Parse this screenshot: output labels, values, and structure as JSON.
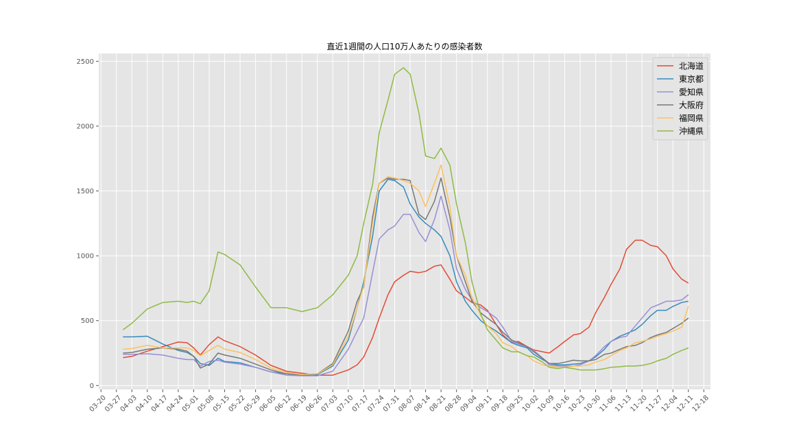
{
  "chart_data": {
    "type": "line",
    "title": "直近1週間の人口10万人あたりの感染者数",
    "xlabel": "",
    "ylabel": "",
    "ylim": [
      -30,
      2560
    ],
    "yticks": [
      0,
      500,
      1000,
      1500,
      2000,
      2500
    ],
    "x_tick_labels": [
      "03-20",
      "03-27",
      "04-03",
      "04-10",
      "04-17",
      "04-24",
      "05-01",
      "05-08",
      "05-15",
      "05-22",
      "05-29",
      "06-05",
      "06-12",
      "06-19",
      "06-26",
      "07-03",
      "07-10",
      "07-17",
      "07-24",
      "07-31",
      "08-07",
      "08-14",
      "08-21",
      "08-28",
      "09-04",
      "09-11",
      "09-18",
      "09-25",
      "10-02",
      "10-09",
      "10-16",
      "10-23",
      "10-30",
      "11-06",
      "11-13",
      "11-20",
      "11-27",
      "12-04",
      "12-11",
      "12-18"
    ],
    "grid": true,
    "legend_position": "top-right",
    "x_points": [
      "03-30",
      "04-03",
      "04-10",
      "04-17",
      "04-24",
      "04-28",
      "05-01",
      "05-04",
      "05-08",
      "05-12",
      "05-15",
      "05-22",
      "05-29",
      "06-05",
      "06-12",
      "06-19",
      "06-26",
      "07-03",
      "07-10",
      "07-14",
      "07-17",
      "07-21",
      "07-24",
      "07-28",
      "07-31",
      "08-04",
      "08-07",
      "08-11",
      "08-14",
      "08-18",
      "08-21",
      "08-25",
      "08-28",
      "09-01",
      "09-04",
      "09-08",
      "09-11",
      "09-15",
      "09-18",
      "09-22",
      "09-25",
      "09-29",
      "10-02",
      "10-06",
      "10-09",
      "10-13",
      "10-16",
      "10-20",
      "10-23",
      "10-27",
      "10-30",
      "11-03",
      "11-06",
      "11-10",
      "11-13",
      "11-17",
      "11-20",
      "11-24",
      "11-27",
      "12-01",
      "12-04",
      "12-08",
      "12-11"
    ],
    "series": [
      {
        "name": "北海道",
        "color": "#E24A33",
        "values": [
          215,
          225,
          265,
          300,
          335,
          330,
          290,
          235,
          315,
          375,
          345,
          300,
          235,
          155,
          110,
          95,
          80,
          80,
          120,
          160,
          220,
          370,
          520,
          700,
          800,
          850,
          880,
          870,
          880,
          920,
          930,
          820,
          730,
          680,
          640,
          620,
          580,
          470,
          390,
          330,
          340,
          300,
          275,
          260,
          250,
          300,
          340,
          390,
          400,
          450,
          560,
          680,
          780,
          900,
          1050,
          1120,
          1120,
          1080,
          1070,
          1000,
          900,
          820,
          790
        ]
      },
      {
        "name": "東京都",
        "color": "#348ABD",
        "values": [
          375,
          375,
          380,
          320,
          270,
          255,
          225,
          170,
          155,
          210,
          185,
          175,
          140,
          105,
          90,
          80,
          85,
          150,
          350,
          600,
          800,
          1150,
          1500,
          1590,
          1580,
          1530,
          1400,
          1300,
          1250,
          1200,
          1150,
          1000,
          800,
          650,
          580,
          500,
          460,
          420,
          380,
          330,
          310,
          290,
          240,
          200,
          170,
          160,
          160,
          165,
          170,
          190,
          220,
          280,
          340,
          380,
          400,
          430,
          470,
          540,
          580,
          580,
          610,
          640,
          650
        ]
      },
      {
        "name": "愛知県",
        "color": "#988ED5",
        "values": [
          240,
          240,
          245,
          235,
          210,
          200,
          200,
          150,
          185,
          195,
          180,
          165,
          140,
          105,
          80,
          75,
          75,
          110,
          280,
          420,
          520,
          870,
          1130,
          1200,
          1230,
          1320,
          1320,
          1180,
          1110,
          1280,
          1460,
          1200,
          900,
          740,
          660,
          600,
          570,
          520,
          450,
          340,
          320,
          300,
          270,
          210,
          160,
          150,
          150,
          150,
          160,
          190,
          230,
          300,
          340,
          370,
          380,
          460,
          520,
          600,
          620,
          650,
          650,
          660,
          700
        ]
      },
      {
        "name": "大阪府",
        "color": "#777777",
        "values": [
          250,
          255,
          280,
          290,
          280,
          265,
          225,
          135,
          165,
          250,
          235,
          210,
          165,
          120,
          90,
          85,
          90,
          170,
          420,
          650,
          760,
          1300,
          1560,
          1600,
          1590,
          1590,
          1580,
          1320,
          1280,
          1420,
          1600,
          1300,
          1000,
          800,
          650,
          560,
          520,
          470,
          410,
          350,
          330,
          300,
          260,
          210,
          170,
          170,
          180,
          195,
          190,
          190,
          200,
          240,
          250,
          280,
          300,
          310,
          330,
          370,
          390,
          410,
          440,
          480,
          520
        ]
      },
      {
        "name": "福岡県",
        "color": "#FBC15E",
        "values": [
          280,
          285,
          310,
          290,
          290,
          290,
          270,
          230,
          270,
          310,
          280,
          255,
          200,
          135,
          100,
          85,
          90,
          160,
          380,
          600,
          770,
          1250,
          1560,
          1610,
          1600,
          1580,
          1560,
          1500,
          1380,
          1560,
          1700,
          1380,
          1000,
          850,
          680,
          540,
          460,
          400,
          330,
          300,
          260,
          230,
          190,
          160,
          150,
          140,
          140,
          150,
          150,
          160,
          180,
          200,
          230,
          270,
          290,
          330,
          340,
          360,
          380,
          400,
          420,
          450,
          610
        ]
      },
      {
        "name": "沖縄県",
        "color": "#8EBA42",
        "values": [
          430,
          480,
          590,
          640,
          650,
          640,
          650,
          630,
          730,
          1030,
          1010,
          930,
          760,
          600,
          600,
          570,
          600,
          700,
          850,
          1000,
          1250,
          1550,
          1950,
          2200,
          2400,
          2450,
          2400,
          2100,
          1770,
          1750,
          1830,
          1700,
          1400,
          1100,
          800,
          550,
          430,
          350,
          290,
          260,
          260,
          230,
          220,
          180,
          140,
          130,
          140,
          130,
          120,
          120,
          120,
          130,
          140,
          145,
          150,
          150,
          155,
          170,
          190,
          210,
          240,
          270,
          290
        ]
      }
    ]
  }
}
